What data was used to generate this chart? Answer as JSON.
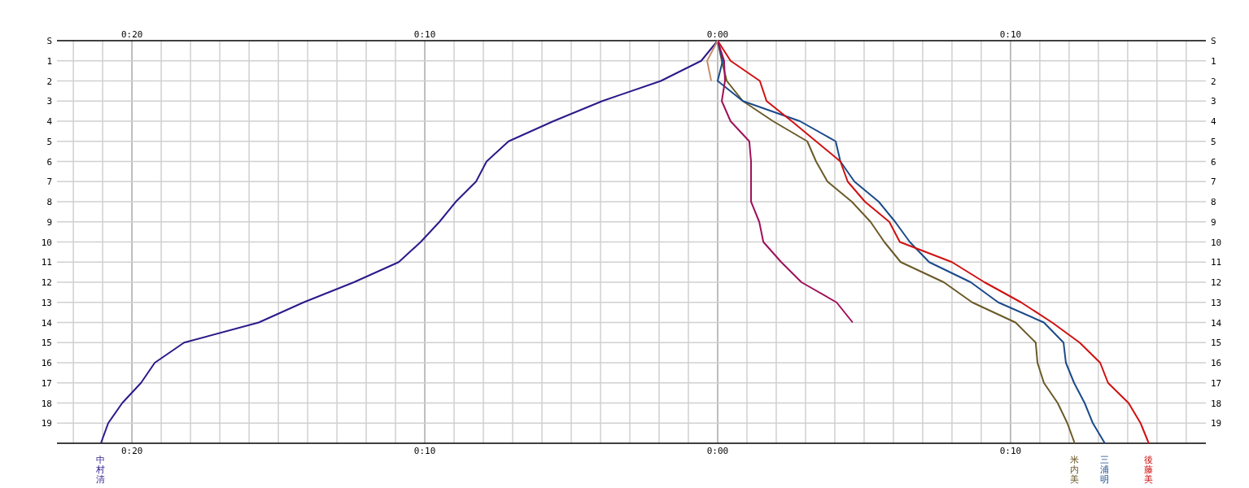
{
  "chart_data": {
    "type": "line",
    "orientation": "horizontal",
    "grid": true,
    "marker": "none",
    "line_style": "solid",
    "categories": [
      "S",
      "1",
      "2",
      "3",
      "4",
      "5",
      "6",
      "7",
      "8",
      "9",
      "10",
      "11",
      "12",
      "13",
      "14",
      "15",
      "16",
      "17",
      "18",
      "19",
      null
    ],
    "xlim": [
      -22.56,
      16.67
    ],
    "x2lim": [
      -22.56,
      16.67
    ],
    "xticks": [
      {
        "value": -22,
        "label": null
      },
      {
        "value": -21,
        "label": null
      },
      {
        "value": -20,
        "label": "0:20"
      },
      {
        "value": -19,
        "label": null
      },
      {
        "value": -18,
        "label": null
      },
      {
        "value": -17,
        "label": null
      },
      {
        "value": -16,
        "label": null
      },
      {
        "value": -15,
        "label": null
      },
      {
        "value": -14,
        "label": null
      },
      {
        "value": -13,
        "label": null
      },
      {
        "value": -12,
        "label": null
      },
      {
        "value": -11,
        "label": null
      },
      {
        "value": -10,
        "label": "0:10"
      },
      {
        "value": -9,
        "label": null
      },
      {
        "value": -8,
        "label": null
      },
      {
        "value": -7,
        "label": null
      },
      {
        "value": -6,
        "label": null
      },
      {
        "value": -5,
        "label": null
      },
      {
        "value": -4,
        "label": null
      },
      {
        "value": -3,
        "label": null
      },
      {
        "value": -2,
        "label": null
      },
      {
        "value": -1,
        "label": null
      },
      {
        "value": 0,
        "label": "0:00"
      },
      {
        "value": 1,
        "label": null
      },
      {
        "value": 2,
        "label": null
      },
      {
        "value": 3,
        "label": null
      },
      {
        "value": 4,
        "label": null
      },
      {
        "value": 5,
        "label": null
      },
      {
        "value": 6,
        "label": null
      },
      {
        "value": 7,
        "label": null
      },
      {
        "value": 8,
        "label": null
      },
      {
        "value": 9,
        "label": null
      },
      {
        "value": 10,
        "label": "0:10"
      },
      {
        "value": 11,
        "label": null
      },
      {
        "value": 12,
        "label": null
      },
      {
        "value": 13,
        "label": null
      },
      {
        "value": 14,
        "label": null
      },
      {
        "value": 15,
        "label": null
      },
      {
        "value": 16,
        "label": null
      }
    ],
    "x2ticks": [
      {
        "value": -20,
        "label": "0:20"
      },
      {
        "value": -10,
        "label": "0:10"
      },
      {
        "value": 0,
        "label": "0:00"
      },
      {
        "value": 10,
        "label": "0:10"
      }
    ],
    "series": [
      {
        "name": "中村清",
        "color": "#2a1a8a",
        "values": [
          0,
          -0.56,
          -1.94,
          -3.94,
          -5.61,
          -7.14,
          -7.89,
          -8.25,
          -8.94,
          -9.5,
          -10.14,
          -10.89,
          -12.42,
          -14.14,
          -15.67,
          -18.22,
          -19.22,
          -19.69,
          -20.33,
          -20.81,
          -21.06
        ]
      },
      {
        "name": "米内美",
        "color": "#6b5a28",
        "values": [
          0,
          0.14,
          0.31,
          0.86,
          1.89,
          3.06,
          3.36,
          3.75,
          4.58,
          5.22,
          5.69,
          6.25,
          7.72,
          8.69,
          10.17,
          10.86,
          10.92,
          11.14,
          11.61,
          11.94,
          12.19
        ]
      },
      {
        "name": "三浦明",
        "color": "#1a4a8a",
        "values": [
          0,
          0.17,
          0,
          0.86,
          2.81,
          4.03,
          4.19,
          4.67,
          5.5,
          6.06,
          6.56,
          7.22,
          8.64,
          9.58,
          11.14,
          11.81,
          11.89,
          12.17,
          12.53,
          12.81,
          13.22
        ]
      },
      {
        "name": "後藤美",
        "color": "#d01010",
        "values": [
          0,
          0.44,
          1.44,
          1.67,
          2.53,
          3.36,
          4.19,
          4.44,
          5.03,
          5.86,
          6.22,
          8.0,
          9.11,
          10.36,
          11.42,
          12.36,
          13.06,
          13.33,
          14.03,
          14.44,
          14.72
        ]
      },
      {
        "color": "#a0105a",
        "values": [
          0,
          0.22,
          0.25,
          0.14,
          0.44,
          1.08,
          1.14,
          1.14,
          1.14,
          1.42,
          1.56,
          2.17,
          2.86,
          4.06,
          4.61,
          null,
          null,
          null,
          null,
          null,
          null
        ]
      },
      {
        "color": "#c8906a",
        "values": [
          0,
          -0.36,
          -0.22,
          null,
          null,
          null,
          null,
          null,
          null,
          null,
          null,
          null,
          null,
          null,
          null,
          null,
          null,
          null,
          null,
          null,
          null
        ]
      }
    ]
  }
}
